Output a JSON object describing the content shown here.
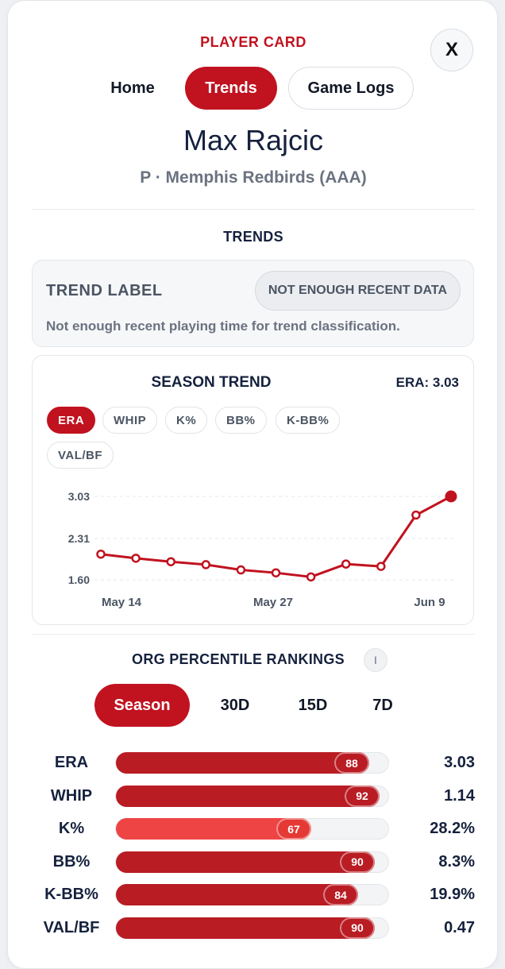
{
  "header": {
    "eyebrow": "PLAYER CARD",
    "close_label": "X"
  },
  "nav": {
    "tabs": [
      {
        "label": "Home",
        "active": false
      },
      {
        "label": "Trends",
        "active": true
      },
      {
        "label": "Game Logs",
        "active": false
      }
    ]
  },
  "player": {
    "name": "Max Rajcic",
    "subtitle": "P · Memphis Redbirds (AAA)"
  },
  "trends": {
    "section_title": "TRENDS",
    "label_title": "TREND LABEL",
    "status_pill": "NOT ENOUGH RECENT DATA",
    "description": "Not enough recent playing time for trend classification."
  },
  "season_trend": {
    "title": "SEASON TREND",
    "current_readout": "ERA: 3.03",
    "metrics": [
      {
        "label": "ERA",
        "active": true
      },
      {
        "label": "WHIP",
        "active": false
      },
      {
        "label": "K%",
        "active": false
      },
      {
        "label": "BB%",
        "active": false
      },
      {
        "label": "K-BB%",
        "active": false
      },
      {
        "label": "VAL/BF",
        "active": false
      }
    ]
  },
  "chart_data": {
    "type": "line",
    "title": "",
    "xlabel": "",
    "ylabel": "",
    "series": [
      {
        "values": [
          2.04,
          1.97,
          1.91,
          1.86,
          1.77,
          1.72,
          1.65,
          1.87,
          1.83,
          2.71,
          3.03
        ]
      }
    ],
    "x_tick_labels": [
      "May 14",
      "May 27",
      "Jun 9"
    ],
    "y_ticks": [
      "1.60",
      "2.31",
      "3.03"
    ],
    "ylim": [
      1.6,
      3.03
    ],
    "grid": true,
    "line_color": "#c1121f"
  },
  "rankings": {
    "title": "ORG PERCENTILE RANKINGS",
    "info_icon": "info-icon",
    "info_label": "I",
    "ranges": [
      {
        "label": "Season",
        "active": true
      },
      {
        "label": "30D",
        "active": false
      },
      {
        "label": "15D",
        "active": false
      },
      {
        "label": "7D",
        "active": false
      }
    ],
    "rows": [
      {
        "label": "ERA",
        "percentile": 88,
        "value": "3.03"
      },
      {
        "label": "WHIP",
        "percentile": 92,
        "value": "1.14"
      },
      {
        "label": "K%",
        "percentile": 67,
        "value": "28.2%"
      },
      {
        "label": "BB%",
        "percentile": 90,
        "value": "8.3%"
      },
      {
        "label": "K-BB%",
        "percentile": 84,
        "value": "19.9%"
      },
      {
        "label": "VAL/BF",
        "percentile": 90,
        "value": "0.47"
      }
    ]
  }
}
